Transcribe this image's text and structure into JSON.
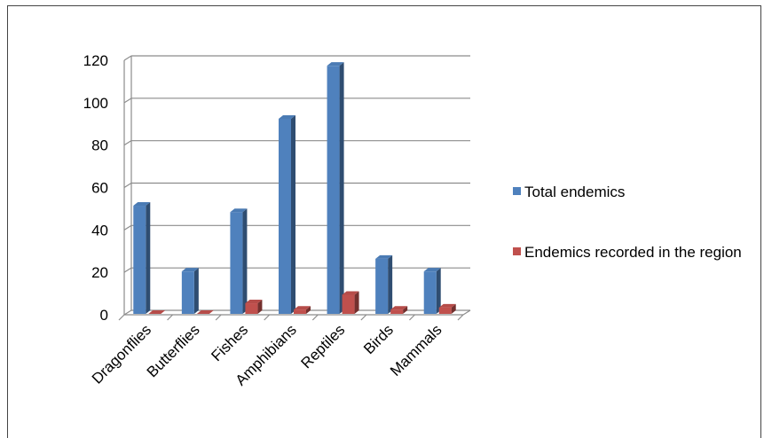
{
  "chart_data": {
    "type": "bar",
    "categories": [
      "Dragonflies",
      "Butterflies",
      "Fishes",
      "Amphibians",
      "Reptiles",
      "Birds",
      "Mammals"
    ],
    "series": [
      {
        "name": "Total endemics",
        "values": [
          51,
          20,
          48,
          92,
          117,
          26,
          20
        ],
        "color": "#4F81BD"
      },
      {
        "name": "Endemics recorded in the region",
        "values": [
          0,
          0,
          5,
          2,
          9,
          2,
          3
        ],
        "color": "#C0504D"
      }
    ],
    "ylim": [
      0,
      120
    ],
    "yticks": [
      "0",
      "20",
      "40",
      "60",
      "80",
      "100",
      "120"
    ],
    "grid": true,
    "legend": "right",
    "style": "3d-column"
  }
}
